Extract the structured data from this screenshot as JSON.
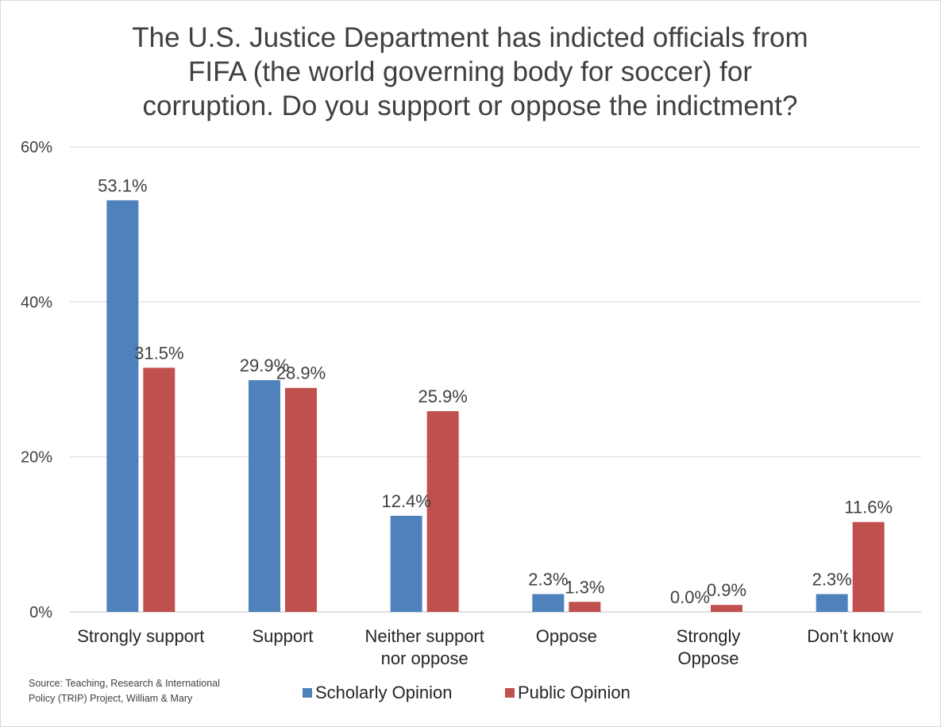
{
  "chart_data": {
    "type": "bar",
    "title_lines": [
      "The U.S. Justice Department has indicted officials from",
      "FIFA (the world governing body for soccer) for",
      "corruption. Do you support or oppose the indictment?"
    ],
    "categories": [
      [
        "Strongly support"
      ],
      [
        "Support"
      ],
      [
        "Neither support",
        "nor oppose"
      ],
      [
        "Oppose"
      ],
      [
        "Strongly",
        "Oppose"
      ],
      [
        "Don’t know"
      ]
    ],
    "series": [
      {
        "name": "Scholarly Opinion",
        "color": "#4f81bd",
        "values": [
          53.1,
          29.9,
          12.4,
          2.3,
          0.0,
          2.3
        ],
        "labels": [
          "53.1%",
          "29.9%",
          "12.4%",
          "2.3%",
          "0.0%",
          "2.3%"
        ]
      },
      {
        "name": "Public Opinion",
        "color": "#c0504d",
        "values": [
          31.5,
          28.9,
          25.9,
          1.3,
          0.9,
          11.6
        ],
        "labels": [
          "31.5%",
          "28.9%",
          "25.9%",
          "1.3%",
          "0.9%",
          "11.6%"
        ]
      }
    ],
    "ylim": [
      0,
      60
    ],
    "yticks": [
      0,
      20,
      40,
      60
    ],
    "ytick_labels": [
      "0%",
      "20%",
      "40%",
      "60%"
    ],
    "grid": true,
    "legend_position": "bottom"
  },
  "source_note": "Source: Teaching, Research & International Policy (TRIP) Project, William & Mary"
}
